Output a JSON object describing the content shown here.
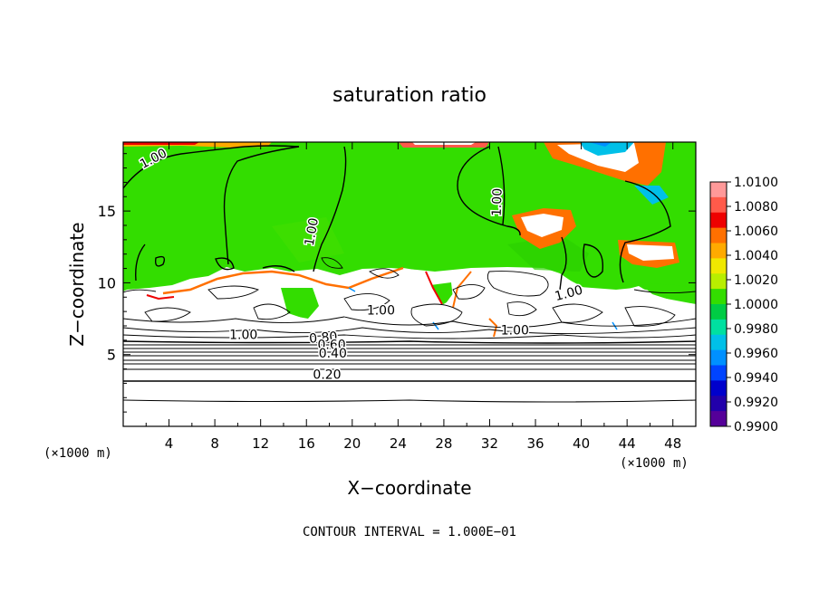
{
  "chart_data": {
    "type": "heatmap",
    "title": "saturation ratio",
    "xlabel": "X−coordinate",
    "ylabel": "Z−coordinate",
    "x_unit_left": "(×1000 m)",
    "x_unit_right": "(×1000 m)",
    "footer": "CONTOUR INTERVAL = 1.000E−01",
    "xlim": [
      0,
      50
    ],
    "ylim": [
      0,
      19.8
    ],
    "x_ticks": [
      4,
      8,
      12,
      16,
      20,
      24,
      28,
      32,
      36,
      40,
      44,
      48
    ],
    "x_tick_labels": [
      "4",
      "8",
      "12",
      "16",
      "20",
      "24",
      "28",
      "32",
      "36",
      "40",
      "44",
      "48"
    ],
    "y_ticks": [
      5,
      10,
      15
    ],
    "y_tick_labels": [
      "5",
      "10",
      "15"
    ],
    "colorbar": {
      "range": [
        0.99,
        1.01
      ],
      "labels": [
        "1.0100",
        "1.0080",
        "1.0060",
        "1.0040",
        "1.0020",
        "1.0000",
        "0.9980",
        "0.9960",
        "0.9940",
        "0.9920",
        "0.9900"
      ],
      "colors": [
        "#ff9999",
        "#ff5a4a",
        "#ee0000",
        "#ff7000",
        "#ffaa00",
        "#f0e800",
        "#b8ee00",
        "#33dd00",
        "#00cc44",
        "#00e0a0",
        "#00c0e8",
        "#0090ff",
        "#0044ff",
        "#0000cc",
        "#2200aa",
        "#550099"
      ]
    },
    "contour_labels": [
      {
        "text": "1.00",
        "x": 2.8,
        "z": 18.4,
        "angle": -28
      },
      {
        "text": "1.00",
        "x": 16.8,
        "z": 13.5,
        "angle": -80
      },
      {
        "text": "1.00",
        "x": 33.0,
        "z": 15.6,
        "angle": -88
      },
      {
        "text": "1.00",
        "x": 39.0,
        "z": 9.0,
        "angle": -15
      },
      {
        "text": "1.00",
        "x": 22.5,
        "z": 7.8,
        "angle": 0
      },
      {
        "text": "1.00",
        "x": 34.2,
        "z": 6.4,
        "angle": 0
      },
      {
        "text": "1.00",
        "x": 10.5,
        "z": 6.1,
        "angle": 0
      },
      {
        "text": "0.80",
        "x": 17.5,
        "z": 5.9,
        "angle": -5
      },
      {
        "text": "0.60",
        "x": 18.2,
        "z": 5.4,
        "angle": 0
      },
      {
        "text": "0.40",
        "x": 18.3,
        "z": 4.8,
        "angle": 0
      },
      {
        "text": "0.20",
        "x": 17.8,
        "z": 3.3,
        "angle": 0
      }
    ],
    "contour_lines_z": [
      0.2,
      0.4,
      0.6,
      0.8
    ]
  }
}
